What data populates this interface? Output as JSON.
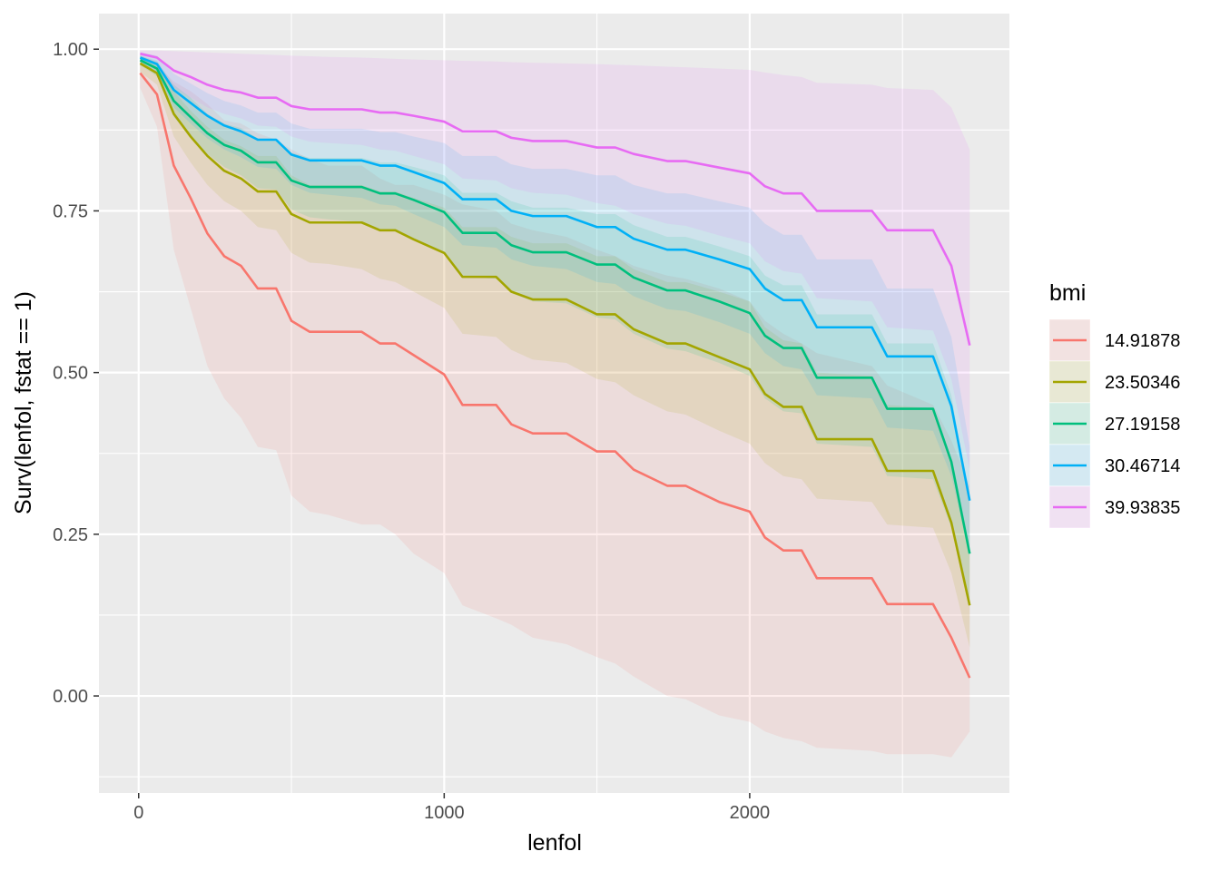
{
  "chart_data": {
    "type": "line",
    "xlabel": "lenfol",
    "ylabel": "Surv(lenfol, fstat == 1)",
    "xlim": [
      -130,
      2850
    ],
    "ylim": [
      -0.15,
      1.055
    ],
    "x_ticks": [
      0,
      1000,
      2000
    ],
    "x_tick_labels": [
      "0",
      "1000",
      "2000"
    ],
    "y_ticks": [
      0,
      0.25,
      0.5,
      0.75,
      1.0
    ],
    "y_tick_labels": [
      "0.00",
      "0.25",
      "0.50",
      "0.75",
      "1.00"
    ],
    "grid": true,
    "panel_background": "#ebebeb",
    "legend": {
      "title": "bmi",
      "position": "right"
    },
    "x": [
      5,
      60,
      115,
      170,
      225,
      280,
      335,
      390,
      450,
      500,
      560,
      620,
      730,
      790,
      840,
      900,
      1000,
      1060,
      1170,
      1220,
      1290,
      1400,
      1500,
      1560,
      1620,
      1730,
      1790,
      1900,
      2000,
      2050,
      2110,
      2170,
      2220,
      2400,
      2450,
      2600,
      2660,
      2720
    ],
    "series": [
      {
        "name": "14.91878",
        "color": "#f8766d",
        "values": [
          0.963,
          0.93,
          0.82,
          0.77,
          0.715,
          0.68,
          0.665,
          0.63,
          0.63,
          0.58,
          0.563,
          0.563,
          0.563,
          0.545,
          0.545,
          0.527,
          0.497,
          0.45,
          0.45,
          0.42,
          0.406,
          0.406,
          0.378,
          0.378,
          0.35,
          0.325,
          0.325,
          0.3,
          0.285,
          0.245,
          0.225,
          0.225,
          0.182,
          0.182,
          0.142,
          0.142,
          0.09,
          0.028
        ],
        "lower": [
          0.94,
          0.88,
          0.69,
          0.6,
          0.51,
          0.46,
          0.43,
          0.385,
          0.38,
          0.31,
          0.285,
          0.28,
          0.265,
          0.265,
          0.25,
          0.22,
          0.19,
          0.14,
          0.12,
          0.11,
          0.09,
          0.08,
          0.06,
          0.05,
          0.03,
          0.0,
          -0.005,
          -0.03,
          -0.04,
          -0.055,
          -0.065,
          -0.07,
          -0.08,
          -0.085,
          -0.09,
          -0.09,
          -0.095,
          -0.055
        ],
        "upper": [
          0.985,
          0.975,
          0.95,
          0.935,
          0.915,
          0.89,
          0.885,
          0.87,
          0.86,
          0.845,
          0.83,
          0.82,
          0.82,
          0.8,
          0.79,
          0.79,
          0.775,
          0.76,
          0.75,
          0.73,
          0.72,
          0.71,
          0.69,
          0.68,
          0.665,
          0.65,
          0.645,
          0.63,
          0.61,
          0.58,
          0.56,
          0.545,
          0.53,
          0.51,
          0.48,
          0.45,
          0.395,
          0.325
        ]
      },
      {
        "name": "23.50346",
        "color": "#a3a500",
        "values": [
          0.978,
          0.963,
          0.9,
          0.865,
          0.835,
          0.812,
          0.8,
          0.78,
          0.78,
          0.745,
          0.732,
          0.732,
          0.732,
          0.72,
          0.72,
          0.706,
          0.685,
          0.648,
          0.648,
          0.625,
          0.613,
          0.613,
          0.59,
          0.59,
          0.567,
          0.545,
          0.545,
          0.524,
          0.505,
          0.467,
          0.447,
          0.447,
          0.397,
          0.397,
          0.348,
          0.348,
          0.268,
          0.14
        ],
        "lower": [
          0.965,
          0.945,
          0.865,
          0.825,
          0.79,
          0.765,
          0.75,
          0.725,
          0.72,
          0.685,
          0.67,
          0.668,
          0.66,
          0.645,
          0.64,
          0.625,
          0.6,
          0.56,
          0.555,
          0.535,
          0.52,
          0.515,
          0.49,
          0.485,
          0.465,
          0.44,
          0.435,
          0.41,
          0.39,
          0.36,
          0.34,
          0.335,
          0.305,
          0.3,
          0.265,
          0.26,
          0.19,
          0.075
        ],
        "upper": [
          0.99,
          0.98,
          0.935,
          0.905,
          0.88,
          0.86,
          0.85,
          0.835,
          0.835,
          0.805,
          0.79,
          0.79,
          0.79,
          0.78,
          0.78,
          0.77,
          0.755,
          0.725,
          0.725,
          0.71,
          0.7,
          0.7,
          0.68,
          0.68,
          0.66,
          0.64,
          0.64,
          0.625,
          0.61,
          0.57,
          0.55,
          0.545,
          0.5,
          0.495,
          0.45,
          0.445,
          0.365,
          0.22
        ]
      },
      {
        "name": "27.19158",
        "color": "#00bf7d",
        "values": [
          0.983,
          0.97,
          0.92,
          0.895,
          0.87,
          0.852,
          0.843,
          0.825,
          0.825,
          0.797,
          0.787,
          0.787,
          0.787,
          0.777,
          0.777,
          0.767,
          0.748,
          0.716,
          0.716,
          0.697,
          0.686,
          0.686,
          0.667,
          0.667,
          0.647,
          0.627,
          0.627,
          0.61,
          0.592,
          0.557,
          0.538,
          0.538,
          0.492,
          0.492,
          0.444,
          0.444,
          0.362,
          0.22
        ],
        "lower": [
          0.975,
          0.958,
          0.895,
          0.865,
          0.838,
          0.818,
          0.805,
          0.785,
          0.783,
          0.752,
          0.74,
          0.737,
          0.733,
          0.722,
          0.718,
          0.705,
          0.683,
          0.648,
          0.645,
          0.623,
          0.61,
          0.607,
          0.585,
          0.582,
          0.56,
          0.537,
          0.533,
          0.515,
          0.495,
          0.46,
          0.44,
          0.437,
          0.39,
          0.385,
          0.34,
          0.335,
          0.26,
          0.14
        ],
        "upper": [
          0.99,
          0.982,
          0.945,
          0.925,
          0.9,
          0.885,
          0.878,
          0.862,
          0.862,
          0.84,
          0.832,
          0.832,
          0.832,
          0.825,
          0.825,
          0.818,
          0.805,
          0.778,
          0.778,
          0.765,
          0.755,
          0.755,
          0.745,
          0.745,
          0.728,
          0.71,
          0.71,
          0.695,
          0.68,
          0.65,
          0.635,
          0.635,
          0.59,
          0.59,
          0.545,
          0.545,
          0.465,
          0.3
        ]
      },
      {
        "name": "30.46714",
        "color": "#00b0f6",
        "values": [
          0.987,
          0.977,
          0.937,
          0.917,
          0.897,
          0.882,
          0.873,
          0.86,
          0.86,
          0.837,
          0.828,
          0.828,
          0.828,
          0.82,
          0.82,
          0.81,
          0.793,
          0.768,
          0.768,
          0.75,
          0.742,
          0.742,
          0.725,
          0.725,
          0.707,
          0.69,
          0.69,
          0.675,
          0.66,
          0.63,
          0.612,
          0.612,
          0.57,
          0.57,
          0.525,
          0.525,
          0.448,
          0.302
        ],
        "lower": [
          0.978,
          0.963,
          0.91,
          0.885,
          0.862,
          0.845,
          0.833,
          0.818,
          0.815,
          0.79,
          0.778,
          0.775,
          0.77,
          0.76,
          0.758,
          0.745,
          0.725,
          0.697,
          0.693,
          0.675,
          0.665,
          0.66,
          0.64,
          0.637,
          0.618,
          0.598,
          0.595,
          0.578,
          0.56,
          0.53,
          0.51,
          0.505,
          0.465,
          0.46,
          0.415,
          0.41,
          0.34,
          0.22
        ],
        "upper": [
          0.995,
          0.99,
          0.962,
          0.947,
          0.932,
          0.92,
          0.913,
          0.902,
          0.902,
          0.885,
          0.877,
          0.877,
          0.877,
          0.872,
          0.872,
          0.865,
          0.855,
          0.835,
          0.835,
          0.822,
          0.815,
          0.815,
          0.805,
          0.805,
          0.79,
          0.777,
          0.777,
          0.765,
          0.755,
          0.73,
          0.713,
          0.713,
          0.675,
          0.675,
          0.63,
          0.63,
          0.555,
          0.385
        ]
      },
      {
        "name": "39.93835",
        "color": "#e76bf3",
        "values": [
          0.993,
          0.987,
          0.967,
          0.957,
          0.945,
          0.937,
          0.933,
          0.925,
          0.925,
          0.912,
          0.907,
          0.907,
          0.907,
          0.902,
          0.902,
          0.897,
          0.888,
          0.873,
          0.873,
          0.863,
          0.858,
          0.858,
          0.848,
          0.848,
          0.838,
          0.827,
          0.827,
          0.817,
          0.808,
          0.788,
          0.777,
          0.777,
          0.75,
          0.75,
          0.72,
          0.72,
          0.665,
          0.542
        ],
        "lower": [
          0.985,
          0.975,
          0.94,
          0.925,
          0.91,
          0.9,
          0.893,
          0.882,
          0.88,
          0.865,
          0.857,
          0.855,
          0.852,
          0.845,
          0.843,
          0.835,
          0.822,
          0.8,
          0.797,
          0.785,
          0.778,
          0.775,
          0.762,
          0.758,
          0.745,
          0.73,
          0.727,
          0.712,
          0.7,
          0.672,
          0.657,
          0.653,
          0.615,
          0.61,
          0.57,
          0.565,
          0.49,
          0.35
        ],
        "upper": [
          0.998,
          0.998,
          0.997,
          0.996,
          0.995,
          0.994,
          0.993,
          0.992,
          0.991,
          0.99,
          0.989,
          0.988,
          0.987,
          0.986,
          0.985,
          0.984,
          0.983,
          0.982,
          0.981,
          0.98,
          0.979,
          0.978,
          0.977,
          0.976,
          0.975,
          0.973,
          0.972,
          0.97,
          0.968,
          0.964,
          0.96,
          0.957,
          0.948,
          0.945,
          0.94,
          0.937,
          0.91,
          0.845
        ]
      }
    ]
  }
}
